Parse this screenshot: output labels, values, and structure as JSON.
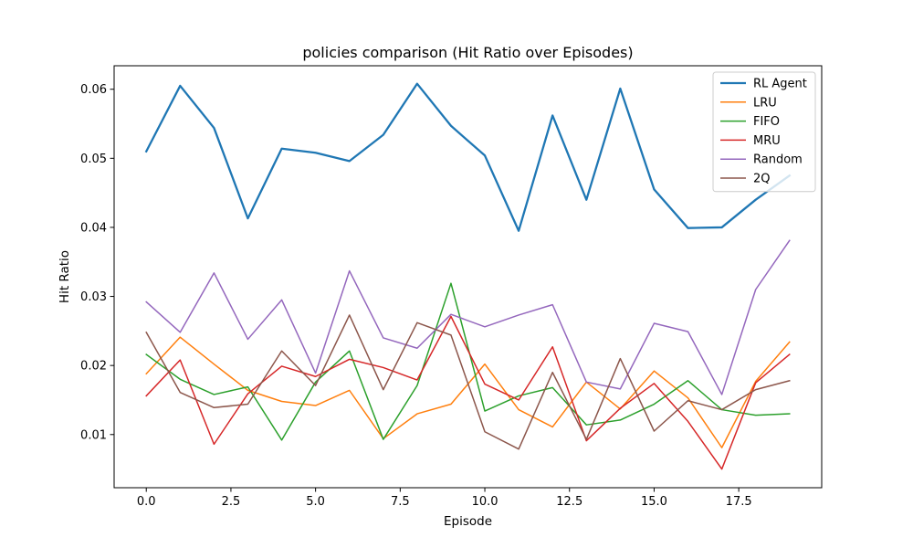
{
  "chart_data": {
    "type": "line",
    "title": "policies comparison (Hit Ratio over Episodes)",
    "xlabel": "Episode",
    "ylabel": "Hit Ratio",
    "xlim": [
      -0.95,
      19.95
    ],
    "ylim": [
      0.0023,
      0.0634
    ],
    "xticks": [
      0.0,
      2.5,
      5.0,
      7.5,
      10.0,
      12.5,
      15.0,
      17.5
    ],
    "xtick_labels": [
      "0.0",
      "2.5",
      "5.0",
      "7.5",
      "10.0",
      "12.5",
      "15.0",
      "17.5"
    ],
    "yticks": [
      0.01,
      0.02,
      0.03,
      0.04,
      0.05,
      0.06
    ],
    "ytick_labels": [
      "0.01",
      "0.02",
      "0.03",
      "0.04",
      "0.05",
      "0.06"
    ],
    "grid": false,
    "legend_position": "top-right",
    "x": [
      0,
      1,
      2,
      3,
      4,
      5,
      6,
      7,
      8,
      9,
      10,
      11,
      12,
      13,
      14,
      15,
      16,
      17,
      18,
      19
    ],
    "series": [
      {
        "name": "RL Agent",
        "color": "#1f77b4",
        "emphasis": true,
        "values": [
          0.051,
          0.0605,
          0.0544,
          0.0413,
          0.0514,
          0.0508,
          0.0496,
          0.0534,
          0.0608,
          0.0547,
          0.0504,
          0.0395,
          0.0562,
          0.044,
          0.0601,
          0.0455,
          0.0399,
          0.04,
          0.044,
          0.0475
        ]
      },
      {
        "name": "LRU",
        "color": "#ff7f0e",
        "values": [
          0.0188,
          0.0241,
          0.0202,
          0.0164,
          0.0148,
          0.0142,
          0.0164,
          0.0094,
          0.013,
          0.0144,
          0.0202,
          0.0136,
          0.0111,
          0.0176,
          0.0137,
          0.0192,
          0.0153,
          0.0081,
          0.0177,
          0.0234
        ]
      },
      {
        "name": "FIFO",
        "color": "#2ca02c",
        "values": [
          0.0216,
          0.018,
          0.0158,
          0.0169,
          0.0092,
          0.0176,
          0.0221,
          0.0093,
          0.0171,
          0.0319,
          0.0134,
          0.0156,
          0.0168,
          0.0114,
          0.0121,
          0.0144,
          0.0178,
          0.0136,
          0.0128,
          0.013
        ]
      },
      {
        "name": "MRU",
        "color": "#d62728",
        "values": [
          0.0156,
          0.0208,
          0.0086,
          0.0159,
          0.0199,
          0.0184,
          0.0209,
          0.0197,
          0.0179,
          0.0271,
          0.0173,
          0.015,
          0.0227,
          0.0091,
          0.0138,
          0.0174,
          0.0119,
          0.005,
          0.0175,
          0.0216
        ]
      },
      {
        "name": "Random",
        "color": "#9467bd",
        "values": [
          0.0292,
          0.0248,
          0.0334,
          0.0238,
          0.0295,
          0.0189,
          0.0337,
          0.024,
          0.0225,
          0.0274,
          0.0256,
          0.0273,
          0.0288,
          0.0176,
          0.0166,
          0.0261,
          0.0249,
          0.0158,
          0.031,
          0.0381
        ]
      },
      {
        "name": "2Q",
        "color": "#8c564b",
        "values": [
          0.0248,
          0.0161,
          0.0139,
          0.0144,
          0.0221,
          0.0171,
          0.0273,
          0.0165,
          0.0262,
          0.0244,
          0.0104,
          0.0079,
          0.019,
          0.0093,
          0.021,
          0.0105,
          0.0149,
          0.0136,
          0.0165,
          0.0178
        ]
      }
    ]
  }
}
